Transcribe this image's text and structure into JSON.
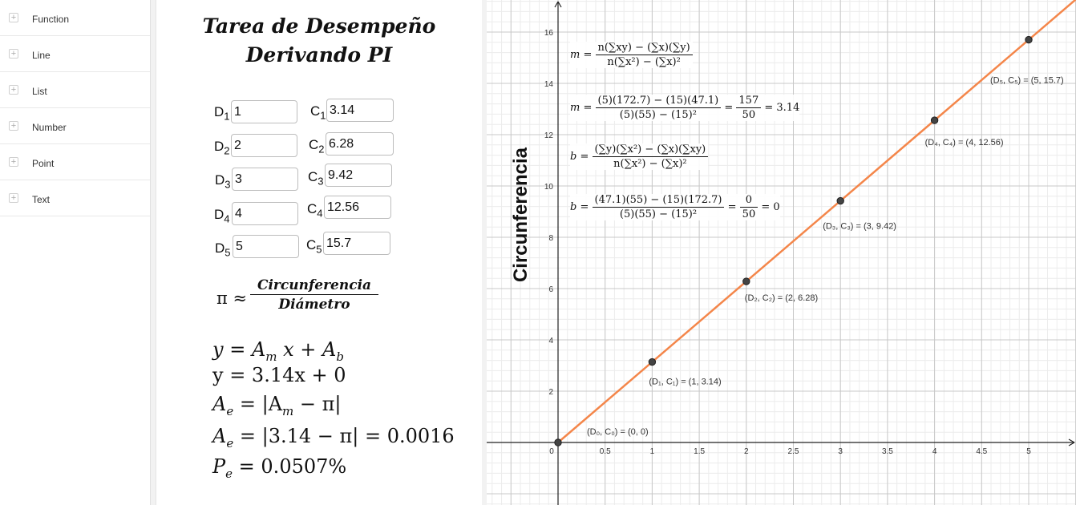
{
  "tools": [
    "Function",
    "Line",
    "List",
    "Number",
    "Point",
    "Text"
  ],
  "title": {
    "line1": "Tarea de Desempeño",
    "line2": "Derivando PI"
  },
  "diam_label": "D",
  "circ_label": "C",
  "rows": [
    {
      "i": "1",
      "d": "1",
      "c": "3.14"
    },
    {
      "i": "2",
      "d": "2",
      "c": "6.28"
    },
    {
      "i": "3",
      "d": "3",
      "c": "9.42"
    },
    {
      "i": "4",
      "d": "4",
      "c": "12.56"
    },
    {
      "i": "5",
      "d": "5",
      "c": "15.7"
    }
  ],
  "pi_formula": {
    "symbol": "π ≈",
    "numerator": "Circunferencia",
    "denominator": "Diámetro"
  },
  "equations": {
    "eq1": {
      "y": "y",
      "eq": " = ",
      "am": "A",
      "am_sub": "m",
      "x": " x + ",
      "ab": "A",
      "ab_sub": "b"
    },
    "eq2": "y = 3.14x + 0",
    "eq3": {
      "a": "A",
      "sub": "e",
      "rest": " = |A",
      "m": "m",
      "tail": " − π|"
    },
    "eq4": {
      "a": "A",
      "sub": "e",
      "rest": " = |3.14 − π| = 0.0016"
    },
    "eq5": {
      "p": "P",
      "sub": "e",
      "rest": " = 0.0507%"
    }
  },
  "graph": {
    "ylabel": "Circunferencia",
    "line_color": "#f4864a",
    "x_ticks": [
      "0",
      "0.5",
      "1",
      "1.5",
      "2",
      "2.5",
      "3",
      "3.5",
      "4",
      "4.5",
      "5"
    ],
    "y_ticks": [
      "2",
      "4",
      "6",
      "8",
      "10",
      "12",
      "14",
      "16"
    ],
    "points": [
      {
        "x": 0,
        "y": 0,
        "label": "(D₀, C₀) = (0, 0)"
      },
      {
        "x": 1,
        "y": 3.14,
        "label": "(D₁, C₁) = (1, 3.14)"
      },
      {
        "x": 2,
        "y": 6.28,
        "label": "(D₂, C₂) = (2, 6.28)"
      },
      {
        "x": 3,
        "y": 9.42,
        "label": "(D₃, C₃) = (3, 9.42)"
      },
      {
        "x": 4,
        "y": 12.56,
        "label": "(D₄, C₄) = (4, 12.56)"
      },
      {
        "x": 5,
        "y": 15.7,
        "label": "(D₅, C₅) = (5, 15.7)"
      }
    ],
    "formulas": {
      "f1": {
        "lhs": "m =",
        "num": "n(∑xy) − (∑x)(∑y)",
        "den": "n(∑x²) − (∑x)²"
      },
      "f2": {
        "lhs": "m =",
        "num": "(5)(172.7) − (15)(47.1)",
        "den": "(5)(55) − (15)²",
        "eq": "=",
        "num2": "157",
        "den2": "50",
        "res": "= 3.14"
      },
      "f3": {
        "lhs": "b =",
        "num": "(∑y)(∑x²) − (∑x)(∑xy)",
        "den": "n(∑x²) − (∑x)²"
      },
      "f4": {
        "lhs": "b =",
        "num": "(47.1)(55) − (15)(172.7)",
        "den": "(5)(55) − (15)²",
        "eq": "=",
        "num2": "0",
        "den2": "50",
        "res": "= 0"
      }
    }
  }
}
